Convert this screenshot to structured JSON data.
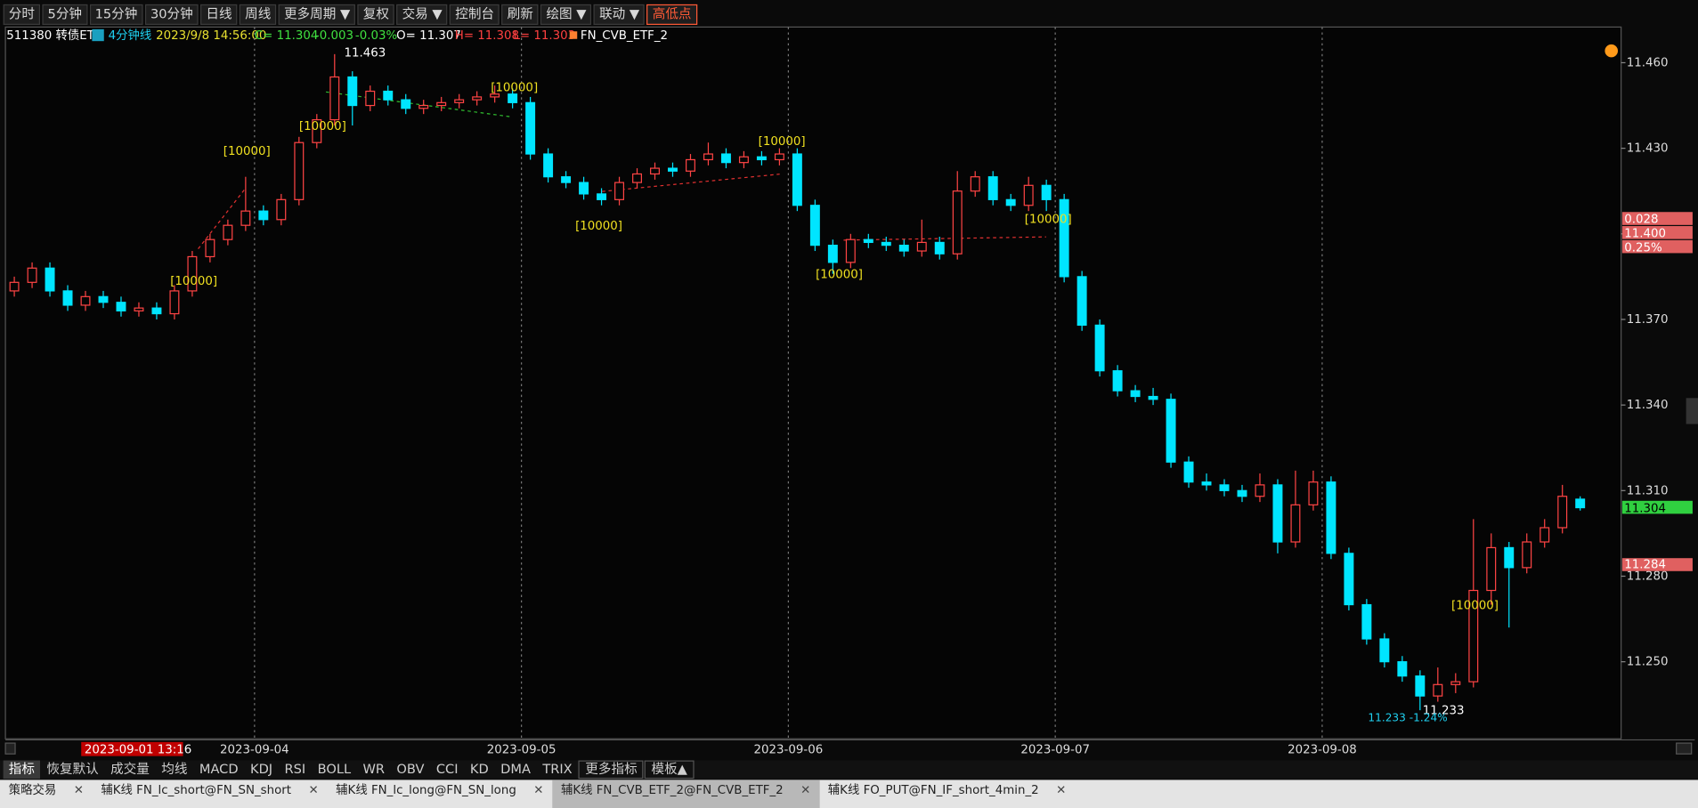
{
  "toolbar": [
    "分时",
    "5分钟",
    "15分钟",
    "30分钟",
    "日线",
    "周线",
    "更多周期 ▼",
    "复权",
    "交易 ▼",
    "控制台",
    "刷新",
    "绘图 ▼",
    "联动 ▼",
    "高低点"
  ],
  "info": {
    "symbol": "511380 转债ETF",
    "period": "4分钟线",
    "time": "2023/9/8 14:56:00",
    "close": "C= 11.304",
    "change": "-0.003",
    "pct": "-0.03%",
    "open": "O= 11.307",
    "high": "H= 11.308",
    "low": "L= 11.303",
    "strategy": "FN_CVB_ETF_2"
  },
  "chart_data": {
    "type": "candlestick",
    "up_color": "#ff4444",
    "down_color": "#00e5ff",
    "ohlc": [
      [
        11.38,
        11.385,
        11.378,
        11.383
      ],
      [
        11.383,
        11.39,
        11.381,
        11.388
      ],
      [
        11.388,
        11.39,
        11.378,
        11.38
      ],
      [
        11.38,
        11.382,
        11.373,
        11.375
      ],
      [
        11.375,
        11.38,
        11.373,
        11.378
      ],
      [
        11.378,
        11.38,
        11.374,
        11.376
      ],
      [
        11.376,
        11.378,
        11.371,
        11.373
      ],
      [
        11.373,
        11.376,
        11.371,
        11.374
      ],
      [
        11.374,
        11.376,
        11.37,
        11.372
      ],
      [
        11.372,
        11.382,
        11.37,
        11.38
      ],
      [
        11.38,
        11.394,
        11.378,
        11.392
      ],
      [
        11.392,
        11.4,
        11.39,
        11.398
      ],
      [
        11.398,
        11.405,
        11.396,
        11.403
      ],
      [
        11.403,
        11.42,
        11.401,
        11.408
      ],
      [
        11.408,
        11.41,
        11.403,
        11.405
      ],
      [
        11.405,
        11.414,
        11.403,
        11.412
      ],
      [
        11.412,
        11.434,
        11.41,
        11.432
      ],
      [
        11.432,
        11.442,
        11.43,
        11.44
      ],
      [
        11.44,
        11.463,
        11.438,
        11.455
      ],
      [
        11.455,
        11.457,
        11.438,
        11.445
      ],
      [
        11.445,
        11.452,
        11.443,
        11.45
      ],
      [
        11.45,
        11.452,
        11.445,
        11.447
      ],
      [
        11.447,
        11.449,
        11.442,
        11.444
      ],
      [
        11.444,
        11.447,
        11.442,
        11.445
      ],
      [
        11.445,
        11.448,
        11.443,
        11.446
      ],
      [
        11.446,
        11.449,
        11.444,
        11.447
      ],
      [
        11.447,
        11.45,
        11.445,
        11.448
      ],
      [
        11.448,
        11.452,
        11.446,
        11.449
      ],
      [
        11.449,
        11.451,
        11.444,
        11.446
      ],
      [
        11.446,
        11.448,
        11.426,
        11.428
      ],
      [
        11.428,
        11.43,
        11.418,
        11.42
      ],
      [
        11.42,
        11.422,
        11.416,
        11.418
      ],
      [
        11.418,
        11.42,
        11.412,
        11.414
      ],
      [
        11.414,
        11.416,
        11.41,
        11.412
      ],
      [
        11.412,
        11.42,
        11.41,
        11.418
      ],
      [
        11.418,
        11.423,
        11.416,
        11.421
      ],
      [
        11.421,
        11.425,
        11.419,
        11.423
      ],
      [
        11.423,
        11.425,
        11.42,
        11.422
      ],
      [
        11.422,
        11.428,
        11.42,
        11.426
      ],
      [
        11.426,
        11.432,
        11.424,
        11.428
      ],
      [
        11.428,
        11.43,
        11.423,
        11.425
      ],
      [
        11.425,
        11.429,
        11.423,
        11.427
      ],
      [
        11.427,
        11.429,
        11.424,
        11.426
      ],
      [
        11.426,
        11.43,
        11.424,
        11.428
      ],
      [
        11.428,
        11.43,
        11.408,
        11.41
      ],
      [
        11.41,
        11.412,
        11.394,
        11.396
      ],
      [
        11.396,
        11.398,
        11.386,
        11.39
      ],
      [
        11.39,
        11.4,
        11.388,
        11.398
      ],
      [
        11.398,
        11.4,
        11.395,
        11.397
      ],
      [
        11.397,
        11.399,
        11.394,
        11.396
      ],
      [
        11.396,
        11.398,
        11.392,
        11.394
      ],
      [
        11.394,
        11.405,
        11.392,
        11.397
      ],
      [
        11.397,
        11.399,
        11.391,
        11.393
      ],
      [
        11.393,
        11.422,
        11.391,
        11.415
      ],
      [
        11.415,
        11.422,
        11.413,
        11.42
      ],
      [
        11.42,
        11.422,
        11.41,
        11.412
      ],
      [
        11.412,
        11.414,
        11.408,
        11.41
      ],
      [
        11.41,
        11.42,
        11.408,
        11.417
      ],
      [
        11.417,
        11.419,
        11.408,
        11.412
      ],
      [
        11.412,
        11.414,
        11.383,
        11.385
      ],
      [
        11.385,
        11.387,
        11.366,
        11.368
      ],
      [
        11.368,
        11.37,
        11.35,
        11.352
      ],
      [
        11.352,
        11.354,
        11.343,
        11.345
      ],
      [
        11.345,
        11.347,
        11.341,
        11.343
      ],
      [
        11.343,
        11.346,
        11.34,
        11.342
      ],
      [
        11.342,
        11.344,
        11.318,
        11.32
      ],
      [
        11.32,
        11.322,
        11.311,
        11.313
      ],
      [
        11.313,
        11.316,
        11.31,
        11.312
      ],
      [
        11.312,
        11.314,
        11.308,
        11.31
      ],
      [
        11.31,
        11.312,
        11.306,
        11.308
      ],
      [
        11.308,
        11.316,
        11.306,
        11.312
      ],
      [
        11.312,
        11.314,
        11.288,
        11.292
      ],
      [
        11.292,
        11.317,
        11.29,
        11.305
      ],
      [
        11.305,
        11.317,
        11.303,
        11.313
      ],
      [
        11.313,
        11.315,
        11.286,
        11.288
      ],
      [
        11.288,
        11.29,
        11.268,
        11.27
      ],
      [
        11.27,
        11.272,
        11.256,
        11.258
      ],
      [
        11.258,
        11.26,
        11.248,
        11.25
      ],
      [
        11.25,
        11.252,
        11.243,
        11.245
      ],
      [
        11.245,
        11.247,
        11.233,
        11.238
      ],
      [
        11.238,
        11.248,
        11.236,
        11.242
      ],
      [
        11.242,
        11.246,
        11.239,
        11.243
      ],
      [
        11.243,
        11.3,
        11.241,
        11.275
      ],
      [
        11.275,
        11.295,
        11.27,
        11.29
      ],
      [
        11.29,
        11.292,
        11.262,
        11.283
      ],
      [
        11.283,
        11.295,
        11.281,
        11.292
      ],
      [
        11.292,
        11.3,
        11.29,
        11.297
      ],
      [
        11.297,
        11.312,
        11.295,
        11.308
      ],
      [
        11.307,
        11.308,
        11.303,
        11.304
      ]
    ],
    "xlim": [
      -0.5,
      90.3
    ],
    "xticks": [
      {
        "value": 13.5,
        "label": "2023-09-04"
      },
      {
        "value": 28.5,
        "label": "2023-09-05"
      },
      {
        "value": 43.5,
        "label": "2023-09-06"
      },
      {
        "value": 58.5,
        "label": "2023-09-07"
      },
      {
        "value": 73.5,
        "label": "2023-09-08"
      }
    ],
    "ylim": [
      11.223,
      11.4725
    ],
    "yticks": [
      {
        "value": 11.25,
        "label": "11.250"
      },
      {
        "value": 11.28,
        "label": "11.280"
      },
      {
        "value": 11.31,
        "label": "11.310"
      },
      {
        "value": 11.34,
        "label": "11.340"
      },
      {
        "value": 11.37,
        "label": "11.370"
      },
      {
        "value": 11.4,
        "label": "11.400"
      },
      {
        "value": 11.43,
        "label": "11.430"
      },
      {
        "value": 11.46,
        "label": "11.460"
      }
    ],
    "annotations": [
      "[10000]",
      "[10000]",
      "[10000]",
      "[10000]",
      "[10000]",
      "[10000]",
      "[10000]",
      "[10000]",
      "[10000]",
      "11.463",
      "11.233",
      "11.233 -1.24%"
    ],
    "price_tags": [
      "0.028",
      "11.400",
      "0.25%",
      "11.304",
      "11.284"
    ],
    "cursor_time": "2023-09-01 13:16"
  },
  "indicator_tabs": [
    "指标",
    "恢复默认",
    "成交量",
    "均线",
    "MACD",
    "KDJ",
    "RSI",
    "BOLL",
    "WR",
    "OBV",
    "CCI",
    "KD",
    "DMA",
    "TRIX",
    "更多指标",
    "模板▲"
  ],
  "window_tabs": [
    "策略交易",
    "辅K线 FN_lc_short@FN_SN_short",
    "辅K线 FN_lc_long@FN_SN_long",
    "辅K线 FN_CVB_ETF_2@FN_CVB_ETF_2",
    "辅K线 FO_PUT@FN_IF_short_4min_2"
  ]
}
